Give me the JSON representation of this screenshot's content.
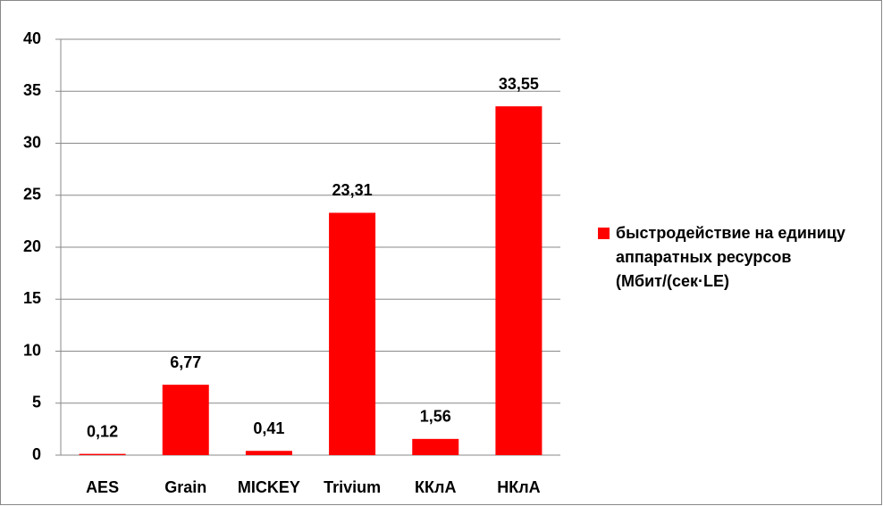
{
  "chart_data": {
    "type": "bar",
    "categories": [
      "AES",
      "Grain",
      "MICKEY",
      "Trivium",
      "ККлА",
      "НКлА"
    ],
    "series": [
      {
        "name": "быстродействие на единицу аппаратных ресурсов (Мбит/(сек·LE)",
        "color": "#ff0000",
        "values": [
          0.12,
          6.77,
          0.41,
          23.31,
          1.56,
          33.55
        ],
        "value_labels": [
          "0,12",
          "6,77",
          "0,41",
          "23,31",
          "1,56",
          "33,55"
        ]
      }
    ],
    "ylim": [
      0,
      40
    ],
    "yticks": [
      0,
      5,
      10,
      15,
      20,
      25,
      30,
      35,
      40
    ],
    "grid": true,
    "legend": "right"
  }
}
